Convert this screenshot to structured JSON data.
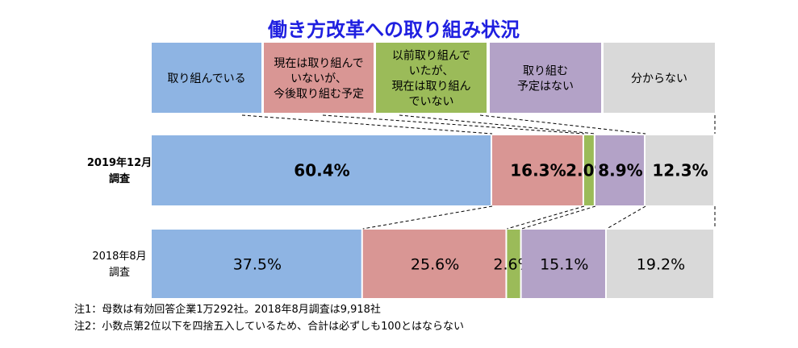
{
  "chart_data": {
    "type": "bar",
    "stacked": true,
    "orientation": "horizontal",
    "percent": true,
    "title": "働き方改革への取り組み状況",
    "title_color": "#1f1fe0",
    "legend_position": "top",
    "categories": [
      "2019年12月\n調査",
      "2018年8月\n調査"
    ],
    "series": [
      {
        "name": "取り組んでいる",
        "color": "#8eb4e3",
        "values": [
          60.4,
          37.5
        ]
      },
      {
        "name": "現在は取り組んで\nいないが、\n今後取り組む予定",
        "color": "#d99694",
        "values": [
          16.3,
          25.6
        ]
      },
      {
        "name": "以前取り組んで\nいたが、\n現在は取り組ん\nでいない",
        "color": "#9bbb59",
        "values": [
          2.0,
          2.6
        ]
      },
      {
        "name": "取り組む\n予定はない",
        "color": "#b3a2c7",
        "values": [
          8.9,
          15.1
        ]
      },
      {
        "name": "分からない",
        "color": "#d9d9d9",
        "values": [
          12.3,
          19.2
        ]
      }
    ],
    "data_labels": [
      [
        "60.4%",
        "16.3%",
        "2.0%",
        "8.9%",
        "12.3%"
      ],
      [
        "37.5%",
        "25.6%",
        "2.6%",
        "15.1%",
        "19.2%"
      ]
    ],
    "xlim": [
      0,
      100
    ],
    "grid": false
  },
  "notes": [
    "注1：母数は有効回答企業1万292社。2018年8月調査は9,918社",
    "注2：小数点第2位以下を四捨五入しているため、合計は必ずしも100とはならない"
  ]
}
